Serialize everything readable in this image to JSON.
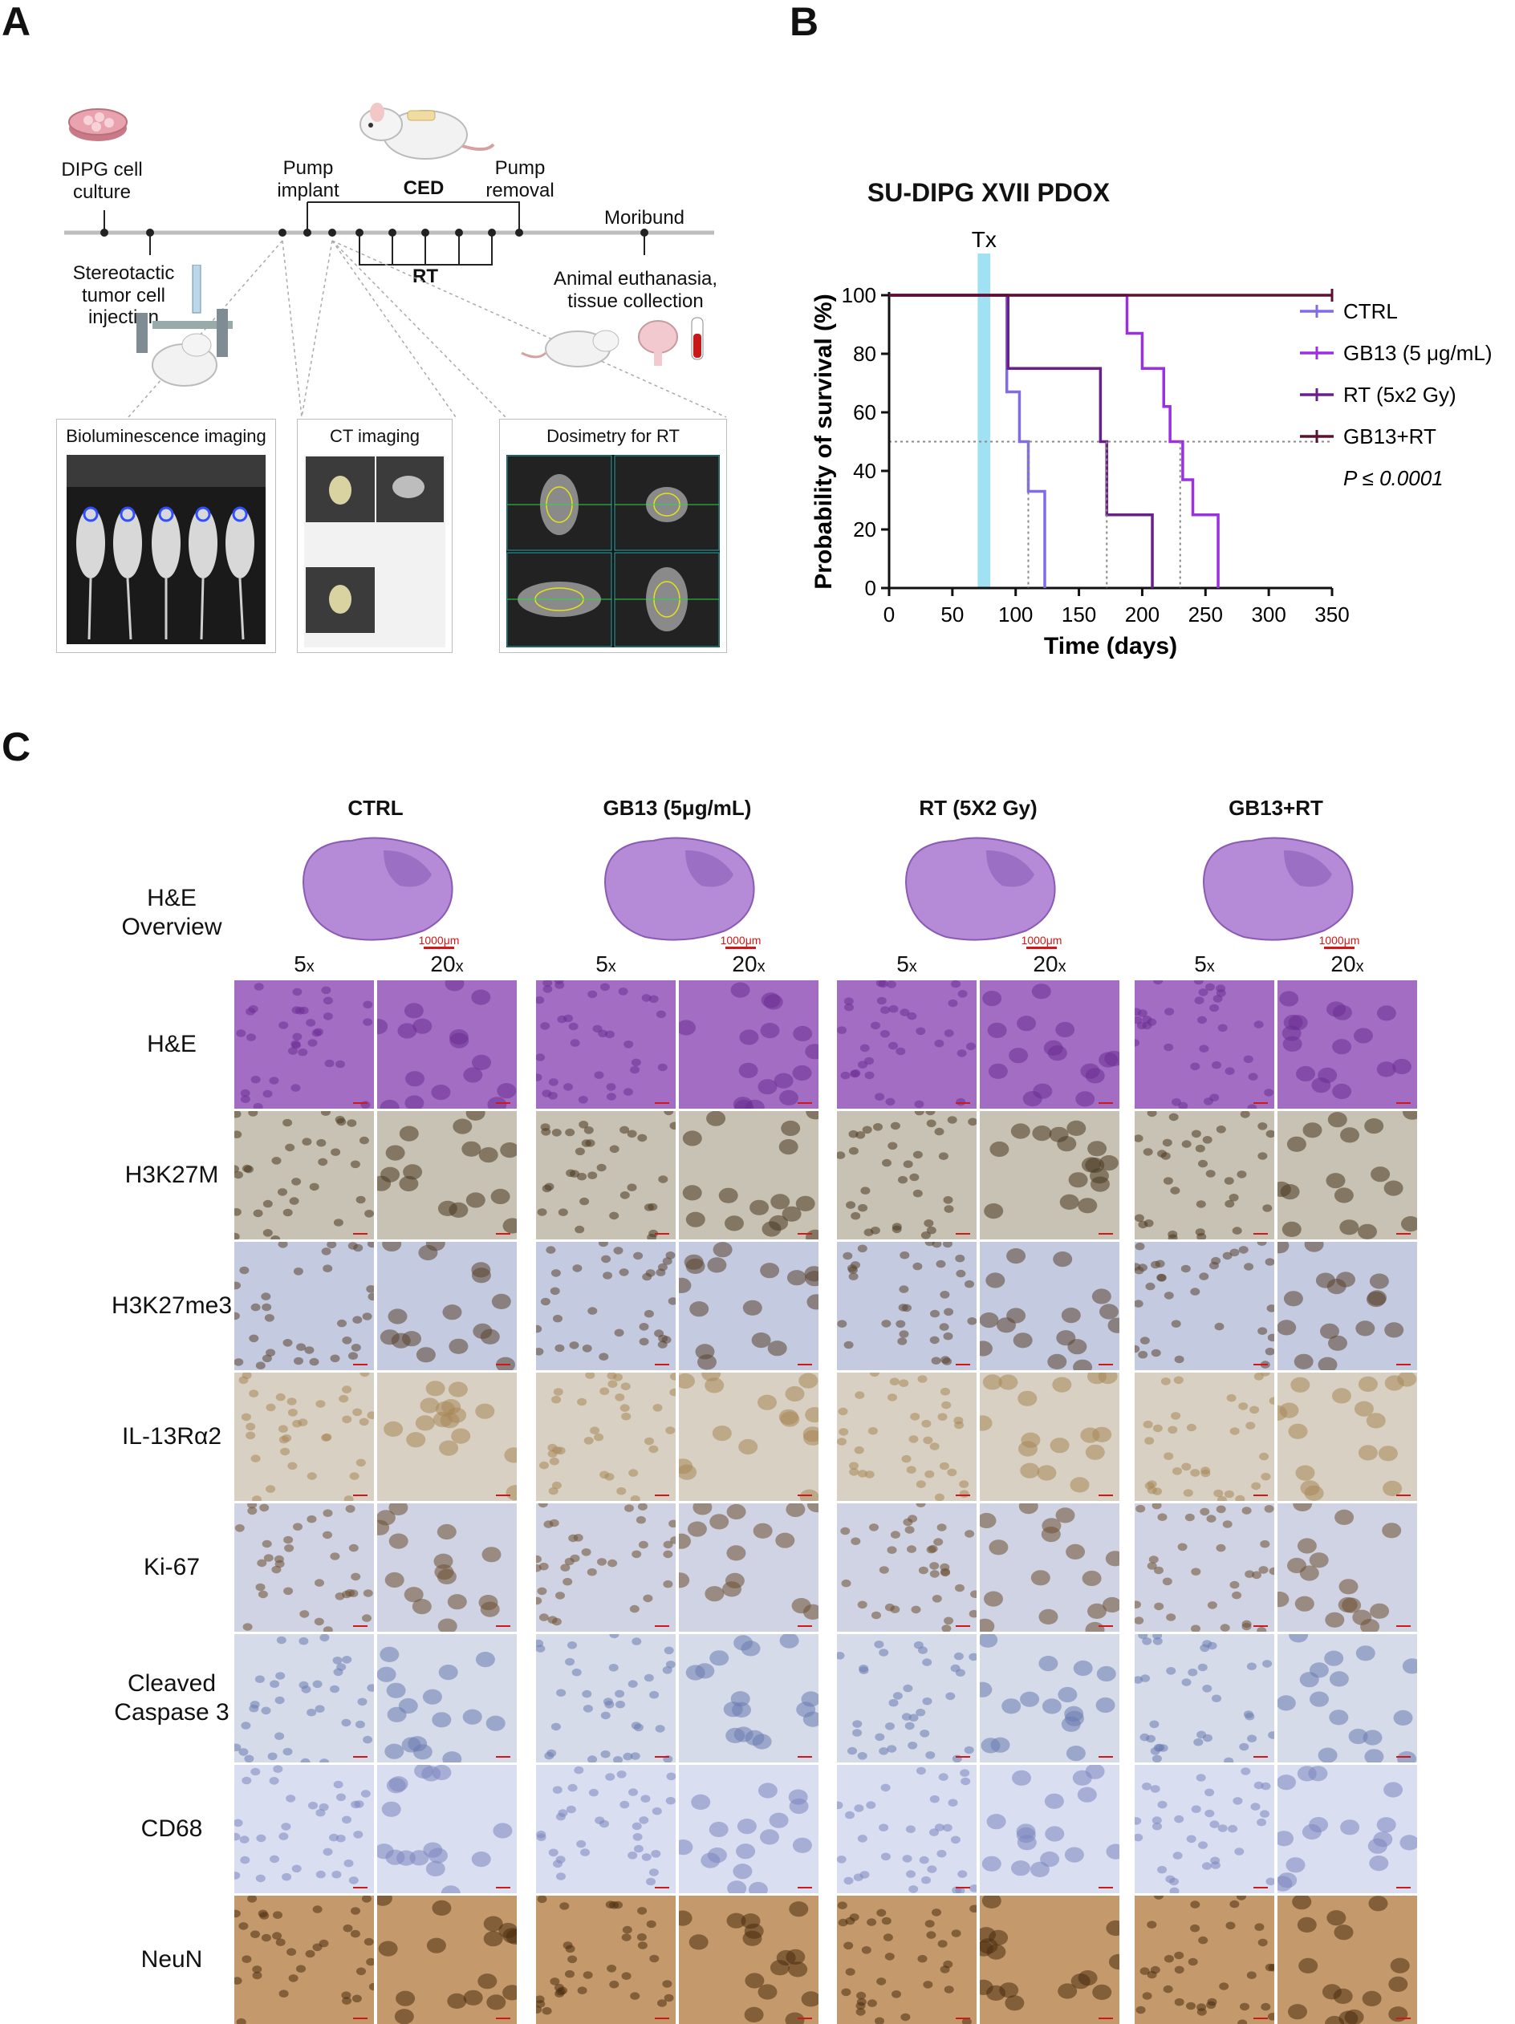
{
  "panels": {
    "a": "A",
    "b": "B",
    "c": "C"
  },
  "timeline": {
    "culture": "DIPG cell\nculture",
    "injection": "Stereotactic\ntumor cell\ninjection",
    "pump_implant": "Pump\nimplant",
    "ced": "CED",
    "pump_removal": "Pump\nremoval",
    "moribund": "Moribund",
    "rt": "RT",
    "euthanasia": "Animal euthanasia,\ntissue collection"
  },
  "imaging_boxes": {
    "bli": "Bioluminescence imaging",
    "ct": "CT imaging",
    "dosimetry": "Dosimetry for RT"
  },
  "chart_data": {
    "type": "line",
    "title": "SU-DIPG XVII PDOX",
    "xlabel": "Time (days)",
    "ylabel": "Probability of survival (%)",
    "xlim": [
      0,
      350
    ],
    "ylim": [
      0,
      100
    ],
    "xticks": [
      "0",
      "50",
      "100",
      "150",
      "200",
      "250",
      "300",
      "350"
    ],
    "yticks": [
      "0",
      "20",
      "40",
      "60",
      "80",
      "100"
    ],
    "treatment_label": "Tx",
    "treatment_window": [
      70,
      80
    ],
    "median_line": 50,
    "pvalue": "P ≤ 0.0001",
    "legend_position": "right",
    "series": [
      {
        "name": "CTRL",
        "color": "#7e6ce8",
        "steps": [
          [
            0,
            100
          ],
          [
            93,
            100
          ],
          [
            93,
            67
          ],
          [
            103,
            67
          ],
          [
            103,
            50
          ],
          [
            110,
            50
          ],
          [
            110,
            33
          ],
          [
            123,
            33
          ],
          [
            123,
            0
          ]
        ],
        "median": 110
      },
      {
        "name": "GB13 (5 μg/mL)",
        "color": "#9b30e0",
        "steps": [
          [
            0,
            100
          ],
          [
            188,
            100
          ],
          [
            188,
            87
          ],
          [
            200,
            87
          ],
          [
            200,
            75
          ],
          [
            217,
            75
          ],
          [
            217,
            62
          ],
          [
            222,
            62
          ],
          [
            222,
            50
          ],
          [
            232,
            50
          ],
          [
            232,
            37
          ],
          [
            240,
            37
          ],
          [
            240,
            25
          ],
          [
            260,
            25
          ],
          [
            260,
            0
          ]
        ],
        "median": 230
      },
      {
        "name": "RT (5x2 Gy)",
        "color": "#6a1f8a",
        "steps": [
          [
            0,
            100
          ],
          [
            94,
            100
          ],
          [
            94,
            75
          ],
          [
            167,
            75
          ],
          [
            167,
            50
          ],
          [
            172,
            50
          ],
          [
            172,
            25
          ],
          [
            208,
            25
          ],
          [
            208,
            0
          ]
        ],
        "median": 172
      },
      {
        "name": "GB13+RT",
        "color": "#5a1230",
        "steps": [
          [
            0,
            100
          ],
          [
            350,
            100
          ]
        ],
        "median": null
      }
    ]
  },
  "histology": {
    "columns": [
      "CTRL",
      "GB13 (5μg/mL)",
      "RT (5X2 Gy)",
      "GB13+RT"
    ],
    "overview_label": "H&E\nOverview",
    "overview_scale": "1000μm",
    "mag_5x": "5",
    "mag_20x": "20",
    "mag_unit": "x",
    "rows": [
      "H&E",
      "H3K27M",
      "H3K27me3",
      "IL-13Rα2",
      "Ki-67",
      "Cleaved\nCaspase 3",
      "CD68",
      "NeuN"
    ]
  }
}
